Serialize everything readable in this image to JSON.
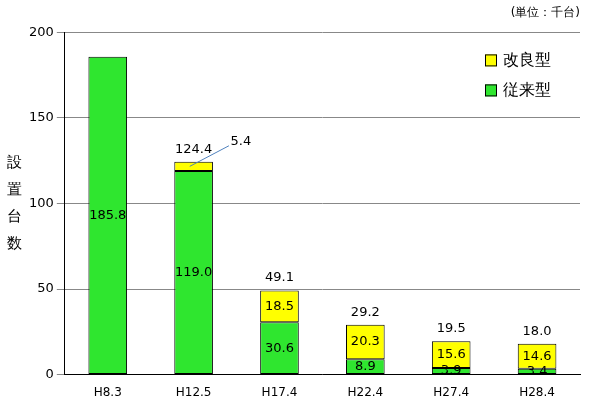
{
  "chart_data": {
    "type": "bar",
    "subtitle": "(単位：千台)",
    "ylabel": "設置台数",
    "categories": [
      "H8.3",
      "H12.5",
      "H17.4",
      "H22.4",
      "H27.4",
      "H28.4"
    ],
    "series": [
      {
        "name": "従来型",
        "color": "#2fe62f",
        "values": [
          185.8,
          119.0,
          30.6,
          8.9,
          3.9,
          3.4
        ],
        "value_labels": [
          "185.8",
          "119.0",
          "30.6",
          "8.9",
          "3.9",
          "3.4"
        ]
      },
      {
        "name": "改良型",
        "color": "#ffff00",
        "values": [
          null,
          5.4,
          18.5,
          20.3,
          15.6,
          14.6
        ],
        "value_labels": [
          null,
          "5.4",
          "18.5",
          "20.3",
          "15.6",
          "14.6"
        ]
      }
    ],
    "totals": [
      null,
      124.4,
      49.1,
      29.2,
      19.5,
      18.0
    ],
    "total_labels": [
      null,
      "124.4",
      "49.1",
      "29.2",
      "19.5",
      "18.0"
    ],
    "ylim": [
      0,
      200
    ],
    "yticks": [
      0,
      50,
      100,
      150,
      200
    ],
    "grid": true,
    "stacked": true,
    "data_labels": true,
    "legend": "upper right"
  }
}
